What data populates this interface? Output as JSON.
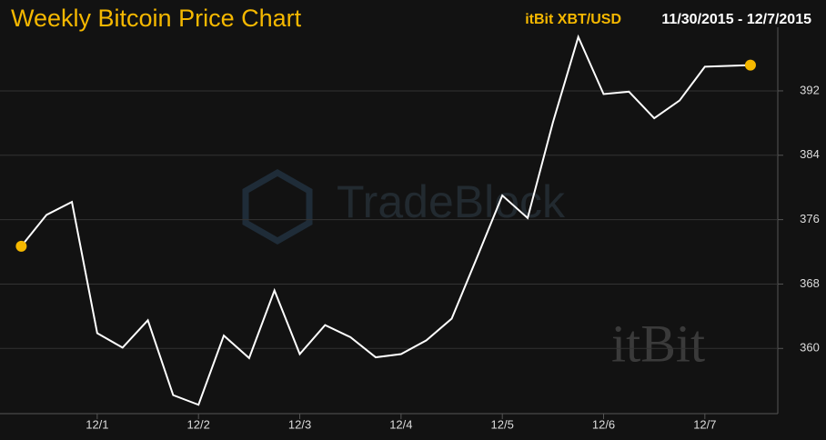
{
  "chart_data": {
    "type": "line",
    "title": "Weekly Bitcoin Price Chart",
    "date_range": "11/30/2015 - 12/7/2015",
    "watermarks": [
      "TradeBlock",
      "itBit"
    ],
    "x": [
      0.25,
      0.5,
      0.75,
      1.0,
      1.25,
      1.5,
      1.75,
      2.0,
      2.25,
      2.5,
      2.75,
      3.0,
      3.25,
      3.5,
      3.75,
      4.0,
      4.25,
      4.5,
      4.75,
      5.0,
      5.25,
      5.5,
      5.75,
      6.0,
      6.25,
      6.5,
      6.75,
      7.0,
      7.45
    ],
    "series": [
      {
        "name": "itBit XBT/USD",
        "color": "#ffffff",
        "marker_color": "#f5b800",
        "values": [
          372.7,
          376.6,
          378.2,
          361.9,
          360.1,
          363.5,
          354.2,
          353.0,
          361.6,
          358.8,
          367.2,
          359.3,
          362.9,
          361.4,
          358.9,
          359.3,
          361.0,
          363.7,
          371.3,
          379.0,
          376.2,
          388.1,
          398.7,
          391.6,
          391.9,
          388.6,
          390.8,
          395.0,
          395.2
        ]
      }
    ],
    "xlim": [
      0.04,
      7.72
    ],
    "xticks": [
      {
        "value": 1,
        "label": "12/1"
      },
      {
        "value": 2,
        "label": "12/2"
      },
      {
        "value": 3,
        "label": "12/3"
      },
      {
        "value": 4,
        "label": "12/4"
      },
      {
        "value": 5,
        "label": "12/5"
      },
      {
        "value": 6,
        "label": "12/6"
      },
      {
        "value": 7,
        "label": "12/7"
      }
    ],
    "ylim": [
      351.9,
      399.9
    ],
    "yticks": [
      360,
      368,
      376,
      384,
      392
    ],
    "grid": true
  }
}
